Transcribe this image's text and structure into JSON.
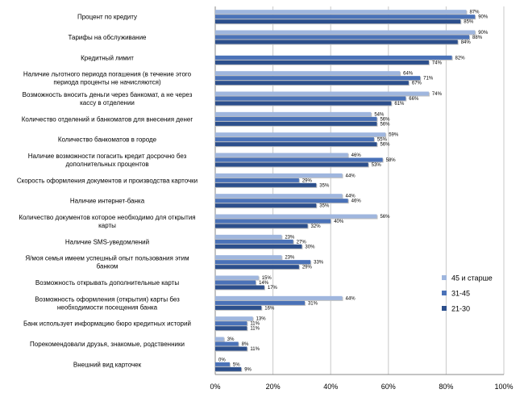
{
  "chart_data": {
    "type": "bar",
    "orientation": "horizontal",
    "categories": [
      [
        "Процент по кредиту"
      ],
      [
        "Тарифы на обслуживание"
      ],
      [
        "Кредитный лимит"
      ],
      [
        "Наличие льготного периода погашения (в течение этого",
        "периода проценты не начисляются)"
      ],
      [
        "Возможность вносить деньги через банкомат, а не через",
        "кассу в отделении"
      ],
      [
        "Количество отделений и банкоматов для внесения денег"
      ],
      [
        "Количество банкоматов в городе"
      ],
      [
        "Наличие возможности погасить кредит досрочно без",
        "дополнительных процентов"
      ],
      [
        "Скорость оформления документов и производства карточки"
      ],
      [
        "Наличие интернет-банка"
      ],
      [
        "Количество документов  которое необходимо для  открытия",
        "карты"
      ],
      [
        "Наличие SMS-уведомлений"
      ],
      [
        "Я/моя семья имеем успешный опыт пользования этим",
        "банком"
      ],
      [
        "Возможность открывать дополнительные карты"
      ],
      [
        "Возможность оформления  (открытия) карты без",
        "необходимости посещения банка"
      ],
      [
        "Банк использует информацию бюро кредитных историй"
      ],
      [
        "Порекомендовали друзья, знакомые, родственники"
      ],
      [
        "Внешний вид карточек"
      ]
    ],
    "series": [
      {
        "name": "45 и старше",
        "color": "#9fb6de",
        "values": [
          87,
          90,
          0,
          64,
          74,
          54,
          59,
          46,
          44,
          44,
          56,
          23,
          23,
          15,
          44,
          13,
          3,
          0
        ],
        "labels": [
          "87%",
          "90%",
          "",
          "64%",
          "74%",
          "54%",
          "59%",
          "46%",
          "44%",
          "44%",
          "56%",
          "23%",
          "23%",
          "15%",
          "44%",
          "13%",
          "3%",
          "0%"
        ]
      },
      {
        "name": "31-45",
        "color": "#4a72b8",
        "values": [
          90,
          88,
          82,
          71,
          66,
          56,
          55,
          58,
          29,
          46,
          40,
          27,
          33,
          14,
          31,
          11,
          8,
          5
        ],
        "labels": [
          "90%",
          "88%",
          "82%",
          "71%",
          "66%",
          "56%",
          "55%",
          "58%",
          "29%",
          "46%",
          "40%",
          "27%",
          "33%",
          "14%",
          "31%",
          "11%",
          "8%",
          "5%"
        ]
      },
      {
        "name": "21-30",
        "color": "#2c4f8c",
        "values": [
          85,
          84,
          74,
          67,
          61,
          56,
          56,
          53,
          35,
          35,
          32,
          30,
          29,
          17,
          16,
          11,
          11,
          9
        ],
        "labels": [
          "85%",
          "84%",
          "74%",
          "67%",
          "61%",
          "56%",
          "56%",
          "53%",
          "35%",
          "35%",
          "32%",
          "30%",
          "29%",
          "17%",
          "16%",
          "11%",
          "11%",
          "9%"
        ]
      }
    ],
    "xlim": [
      0,
      100
    ],
    "ticks": [
      "0%",
      "20%",
      "40%",
      "60%",
      "80%",
      "100%"
    ],
    "legend": {
      "placement": "right",
      "entries": [
        "45 и старше",
        "31-45",
        "21-30"
      ]
    },
    "gridlines": true,
    "grid_color": "#c8c8c8",
    "bar_shadow_color": "#bfbfbf"
  }
}
